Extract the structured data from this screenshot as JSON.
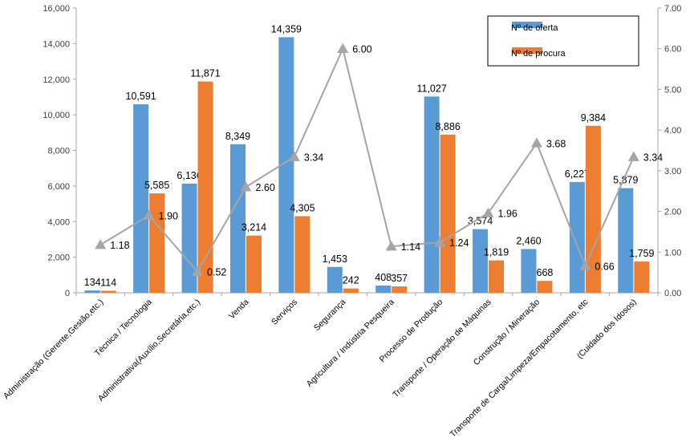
{
  "chart_data": {
    "type": "bar",
    "categories": [
      "Administração (Gerente,Gestão,etc.)",
      "Técnica / Tecnologia",
      "Administrativa(Auxílio,Secretária,etc.)",
      "Venda",
      "Serviços",
      "Segurança",
      "Agricultura / Indústria Pesqueira",
      "Processo de Produção",
      "Transporte / Operação de Máquinas",
      "Construção / Mineração",
      "Transporte de Carga/Limpeza/Empacotamento, etc",
      "(Cuidado dos Idosos)"
    ],
    "series": [
      {
        "name": "Nº de oferta",
        "axis": "left",
        "color": "#5B9BD5",
        "values": [
          134,
          10591,
          6136,
          8349,
          14359,
          1453,
          408,
          11027,
          3574,
          2460,
          6227,
          5879
        ],
        "labels": [
          "134",
          "10,591",
          "6,136",
          "8,349",
          "14,359",
          "1,453",
          "408",
          "11,027",
          "3,574",
          "2,460",
          "6,227",
          "5,879"
        ]
      },
      {
        "name": "Nº de procura",
        "axis": "left",
        "color": "#ED7D31",
        "values": [
          114,
          5585,
          11871,
          3214,
          4305,
          242,
          357,
          8886,
          1819,
          668,
          9384,
          1759
        ],
        "labels": [
          "114",
          "5,585",
          "11,871",
          "3,214",
          "4,305",
          "242",
          "357",
          "8,886",
          "1,819",
          "668",
          "9,384",
          "1,759"
        ]
      },
      {
        "type": "line",
        "axis": "right",
        "color": "#A5A5A5",
        "values": [
          1.18,
          1.9,
          0.52,
          2.6,
          3.34,
          6.0,
          1.14,
          1.24,
          1.96,
          3.68,
          0.66,
          3.34
        ],
        "labels": [
          "1.18",
          "1.90",
          "0.52",
          "2.60",
          "3.34",
          "6.00",
          "1.14",
          "1.24",
          "1.96",
          "3.68",
          "0.66",
          "3.34"
        ]
      }
    ],
    "y_left": {
      "min": 0,
      "max": 16000,
      "step": 2000,
      "ticks": [
        "0",
        "2,000",
        "4,000",
        "6,000",
        "8,000",
        "10,000",
        "12,000",
        "14,000",
        "16,000"
      ]
    },
    "y_right": {
      "min": 0,
      "max": 7,
      "step": 1,
      "ticks": [
        "0.00",
        "1.00",
        "2.00",
        "3.00",
        "4.00",
        "5.00",
        "6.00",
        "7.00"
      ]
    },
    "grid": false,
    "legend_position": "top-right",
    "title": "",
    "xlabel": "",
    "ylabel": ""
  }
}
